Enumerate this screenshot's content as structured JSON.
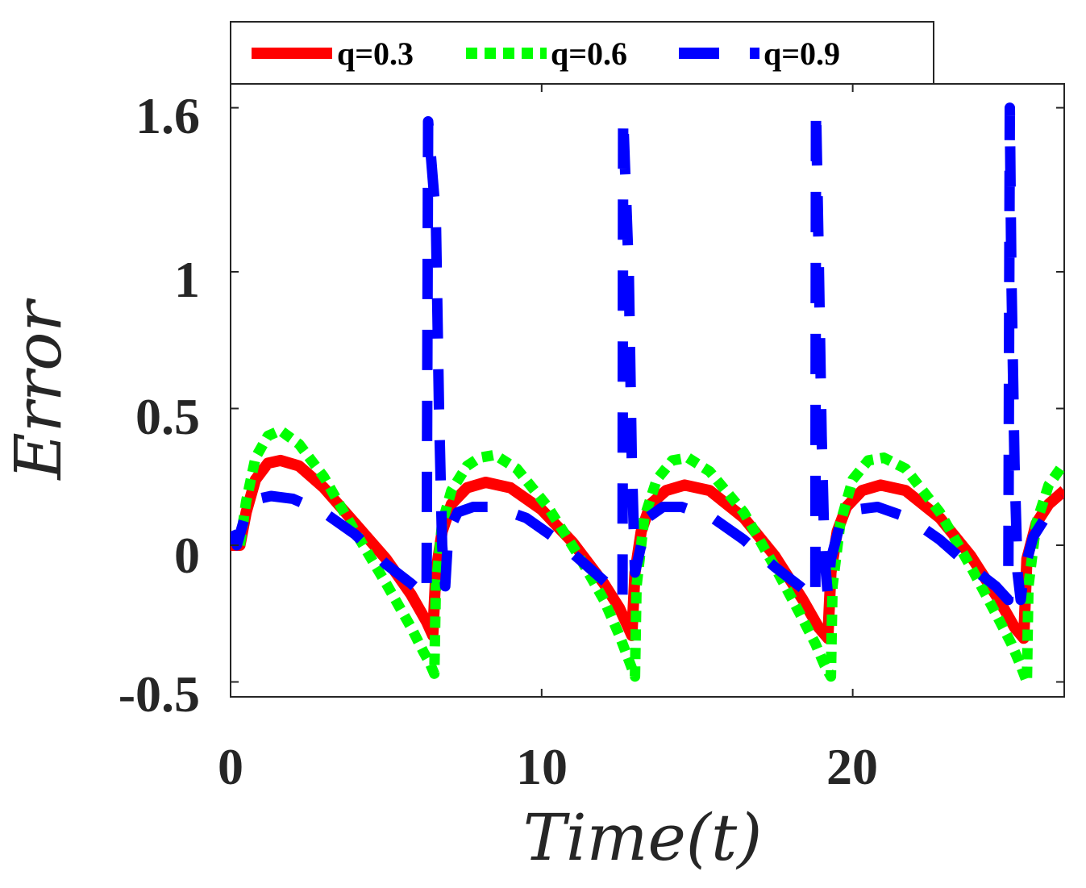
{
  "chart_data": {
    "type": "line",
    "title": "",
    "xlabel": "Time(t)",
    "ylabel": "Error",
    "xlim": [
      0,
      26.8
    ],
    "ylim": [
      -0.55,
      1.65
    ],
    "xticks": [
      0,
      10,
      20
    ],
    "xtick_labels": [
      "0",
      "10",
      "20"
    ],
    "yticks": [
      -0.5,
      0,
      0.5,
      1,
      1.6
    ],
    "ytick_labels": [
      "-0.5",
      "0",
      "0.5",
      "1",
      "1.6"
    ],
    "grid": false,
    "legend_position": "top-outside",
    "series": [
      {
        "name": "q=0.3",
        "color": "#ff0000",
        "style": "solid",
        "points": [
          [
            0,
            0
          ],
          [
            0.3,
            0
          ],
          [
            0.5,
            0.12
          ],
          [
            0.8,
            0.24
          ],
          [
            1.2,
            0.3
          ],
          [
            1.6,
            0.31
          ],
          [
            2.2,
            0.29
          ],
          [
            3.0,
            0.21
          ],
          [
            4.0,
            0.08
          ],
          [
            5.0,
            -0.05
          ],
          [
            5.8,
            -0.18
          ],
          [
            6.3,
            -0.28
          ],
          [
            6.5,
            -0.33
          ],
          [
            6.6,
            -0.1
          ],
          [
            6.8,
            0.05
          ],
          [
            7.1,
            0.15
          ],
          [
            7.6,
            0.21
          ],
          [
            8.2,
            0.23
          ],
          [
            9.0,
            0.21
          ],
          [
            10.0,
            0.13
          ],
          [
            11.0,
            0.01
          ],
          [
            12.0,
            -0.14
          ],
          [
            12.5,
            -0.23
          ],
          [
            12.9,
            -0.33
          ],
          [
            13.0,
            -0.1
          ],
          [
            13.2,
            0.05
          ],
          [
            13.5,
            0.15
          ],
          [
            14.0,
            0.2
          ],
          [
            14.6,
            0.22
          ],
          [
            15.4,
            0.2
          ],
          [
            16.5,
            0.1
          ],
          [
            17.5,
            -0.04
          ],
          [
            18.4,
            -0.2
          ],
          [
            18.9,
            -0.3
          ],
          [
            19.2,
            -0.34
          ],
          [
            19.3,
            -0.1
          ],
          [
            19.5,
            0.05
          ],
          [
            19.8,
            0.14
          ],
          [
            20.3,
            0.2
          ],
          [
            20.9,
            0.22
          ],
          [
            21.7,
            0.2
          ],
          [
            22.8,
            0.1
          ],
          [
            23.8,
            -0.04
          ],
          [
            24.7,
            -0.2
          ],
          [
            25.2,
            -0.3
          ],
          [
            25.5,
            -0.34
          ],
          [
            25.6,
            -0.05
          ],
          [
            25.9,
            0.08
          ],
          [
            26.3,
            0.15
          ],
          [
            26.8,
            0.2
          ]
        ]
      },
      {
        "name": "q=0.6",
        "color": "#00ff00",
        "style": "dotted",
        "points": [
          [
            0.3,
            0
          ],
          [
            0.5,
            0.16
          ],
          [
            0.8,
            0.32
          ],
          [
            1.2,
            0.4
          ],
          [
            1.6,
            0.42
          ],
          [
            2.2,
            0.37
          ],
          [
            3.0,
            0.25
          ],
          [
            4.0,
            0.05
          ],
          [
            5.0,
            -0.14
          ],
          [
            5.8,
            -0.3
          ],
          [
            6.2,
            -0.39
          ],
          [
            6.4,
            -0.43
          ],
          [
            6.55,
            -0.47
          ],
          [
            6.6,
            -0.15
          ],
          [
            6.8,
            0.08
          ],
          [
            7.1,
            0.2
          ],
          [
            7.6,
            0.29
          ],
          [
            8.0,
            0.32
          ],
          [
            8.5,
            0.33
          ],
          [
            9.2,
            0.28
          ],
          [
            10.2,
            0.14
          ],
          [
            11.2,
            -0.04
          ],
          [
            12.0,
            -0.2
          ],
          [
            12.5,
            -0.33
          ],
          [
            12.8,
            -0.42
          ],
          [
            13.0,
            -0.48
          ],
          [
            13.05,
            -0.15
          ],
          [
            13.3,
            0.1
          ],
          [
            13.7,
            0.24
          ],
          [
            14.2,
            0.31
          ],
          [
            14.7,
            0.32
          ],
          [
            15.4,
            0.27
          ],
          [
            16.5,
            0.12
          ],
          [
            17.5,
            -0.08
          ],
          [
            18.3,
            -0.25
          ],
          [
            18.8,
            -0.36
          ],
          [
            19.1,
            -0.44
          ],
          [
            19.3,
            -0.48
          ],
          [
            19.35,
            -0.15
          ],
          [
            19.6,
            0.08
          ],
          [
            20.0,
            0.24
          ],
          [
            20.5,
            0.31
          ],
          [
            21.0,
            0.32
          ],
          [
            21.7,
            0.28
          ],
          [
            22.8,
            0.12
          ],
          [
            23.8,
            -0.08
          ],
          [
            24.6,
            -0.25
          ],
          [
            25.1,
            -0.36
          ],
          [
            25.4,
            -0.44
          ],
          [
            25.6,
            -0.5
          ],
          [
            25.65,
            -0.15
          ],
          [
            25.9,
            0.08
          ],
          [
            26.3,
            0.22
          ],
          [
            26.8,
            0.3
          ]
        ]
      },
      {
        "name": "q=0.9",
        "color": "#0000ff",
        "style": "dashed",
        "points": [
          [
            0,
            0.05
          ],
          [
            0.2,
            0
          ],
          [
            0.5,
            0.12
          ],
          [
            0.9,
            0.17
          ],
          [
            1.3,
            0.18
          ],
          [
            2.0,
            0.17
          ],
          [
            3.0,
            0.12
          ],
          [
            4.0,
            0.04
          ],
          [
            5.0,
            -0.07
          ],
          [
            5.8,
            -0.14
          ],
          [
            6.3,
            -0.19
          ],
          [
            6.35,
            1.55
          ],
          [
            6.6,
            1.2
          ],
          [
            6.7,
            0.5
          ],
          [
            6.8,
            0
          ],
          [
            6.9,
            -0.15
          ],
          [
            7.0,
            0.05
          ],
          [
            7.3,
            0.12
          ],
          [
            7.8,
            0.14
          ],
          [
            8.5,
            0.14
          ],
          [
            9.5,
            0.1
          ],
          [
            10.5,
            0.02
          ],
          [
            11.5,
            -0.08
          ],
          [
            12.2,
            -0.15
          ],
          [
            12.6,
            -0.2
          ],
          [
            12.62,
            1.57
          ],
          [
            12.8,
            1.0
          ],
          [
            12.9,
            0.3
          ],
          [
            13.0,
            -0.1
          ],
          [
            13.1,
            -0.05
          ],
          [
            13.4,
            0.1
          ],
          [
            13.9,
            0.14
          ],
          [
            14.5,
            0.14
          ],
          [
            15.5,
            0.1
          ],
          [
            16.5,
            0.02
          ],
          [
            17.5,
            -0.08
          ],
          [
            18.3,
            -0.15
          ],
          [
            18.8,
            -0.2
          ],
          [
            18.82,
            1.6
          ],
          [
            18.9,
            1.1
          ],
          [
            19.0,
            0.4
          ],
          [
            19.1,
            -0.05
          ],
          [
            19.2,
            -0.18
          ],
          [
            19.3,
            -0.05
          ],
          [
            19.6,
            0.08
          ],
          [
            20.1,
            0.13
          ],
          [
            20.8,
            0.14
          ],
          [
            21.8,
            0.1
          ],
          [
            22.8,
            0.02
          ],
          [
            23.8,
            -0.08
          ],
          [
            24.6,
            -0.15
          ],
          [
            25.0,
            -0.2
          ],
          [
            25.05,
            1.6
          ],
          [
            25.1,
            1.0
          ],
          [
            25.2,
            0.3
          ],
          [
            25.3,
            -0.1
          ],
          [
            25.4,
            -0.2
          ],
          [
            25.5,
            -0.1
          ],
          [
            25.8,
            0.03
          ],
          [
            26.3,
            0.12
          ],
          [
            26.8,
            0.17
          ]
        ]
      }
    ]
  }
}
